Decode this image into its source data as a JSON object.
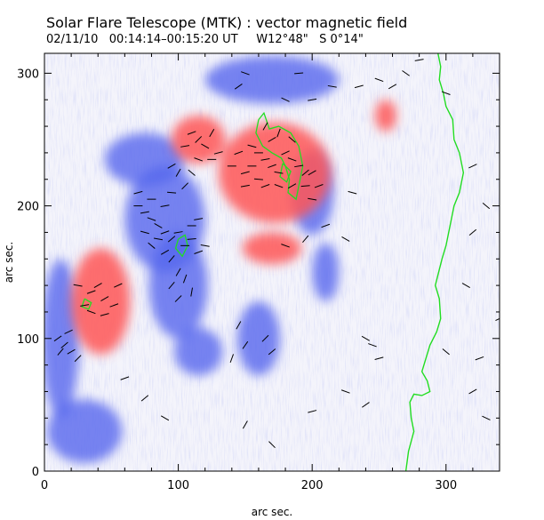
{
  "header": {
    "title": "Solar Flare Telescope (MTK) : vector magnetic field",
    "subtitle": "02/11/10   00:14:14–00:15:20 UT     W12°48\"   S 0°14\""
  },
  "chart_data": {
    "type": "heatmap",
    "xlabel": "arc sec.",
    "ylabel": "arc sec.",
    "xlim": [
      0,
      340
    ],
    "ylim": [
      0,
      315
    ],
    "xticks": [
      0,
      100,
      200,
      300
    ],
    "yticks": [
      0,
      100,
      200,
      300
    ],
    "grid": false,
    "colors": {
      "positive": "#ff5555",
      "negative": "#5566ee",
      "neutral_line": "#22dd22",
      "vectors": "#000000"
    },
    "positive_regions": [
      {
        "cx": 42,
        "cy": 128,
        "rx": 22,
        "ry": 40
      },
      {
        "cx": 115,
        "cy": 250,
        "rx": 20,
        "ry": 18
      },
      {
        "cx": 172,
        "cy": 225,
        "rx": 42,
        "ry": 38
      },
      {
        "cx": 255,
        "cy": 268,
        "rx": 8,
        "ry": 12
      },
      {
        "cx": 170,
        "cy": 168,
        "rx": 22,
        "ry": 12
      }
    ],
    "negative_regions": [
      {
        "cx": 90,
        "cy": 190,
        "rx": 30,
        "ry": 40
      },
      {
        "cx": 75,
        "cy": 235,
        "rx": 30,
        "ry": 20
      },
      {
        "cx": 200,
        "cy": 210,
        "rx": 16,
        "ry": 32
      },
      {
        "cx": 170,
        "cy": 295,
        "rx": 50,
        "ry": 18
      },
      {
        "cx": 12,
        "cy": 100,
        "rx": 14,
        "ry": 60
      },
      {
        "cx": 100,
        "cy": 140,
        "rx": 22,
        "ry": 40
      },
      {
        "cx": 160,
        "cy": 100,
        "rx": 16,
        "ry": 28
      },
      {
        "cx": 115,
        "cy": 90,
        "rx": 18,
        "ry": 18
      },
      {
        "cx": 30,
        "cy": 30,
        "rx": 28,
        "ry": 24
      },
      {
        "cx": 210,
        "cy": 150,
        "rx": 10,
        "ry": 22
      }
    ],
    "neutral_line": [
      [
        294,
        315
      ],
      [
        296,
        305
      ],
      [
        295,
        295
      ],
      [
        298,
        285
      ],
      [
        300,
        275
      ],
      [
        305,
        265
      ],
      [
        306,
        250
      ],
      [
        310,
        240
      ],
      [
        313,
        225
      ],
      [
        310,
        210
      ],
      [
        306,
        200
      ],
      [
        303,
        185
      ],
      [
        300,
        170
      ],
      [
        297,
        160
      ],
      [
        292,
        140
      ],
      [
        295,
        130
      ],
      [
        296,
        115
      ],
      [
        293,
        105
      ],
      [
        288,
        95
      ],
      [
        285,
        85
      ],
      [
        282,
        75
      ],
      [
        286,
        68
      ],
      [
        288,
        60
      ],
      [
        282,
        57
      ],
      [
        276,
        58
      ],
      [
        273,
        52
      ],
      [
        274,
        40
      ],
      [
        276,
        30
      ],
      [
        272,
        15
      ],
      [
        270,
        0
      ]
    ],
    "neutral_contours": [
      [
        [
          160,
          265
        ],
        [
          158,
          255
        ],
        [
          163,
          245
        ],
        [
          170,
          240
        ],
        [
          177,
          236
        ],
        [
          180,
          230
        ],
        [
          183,
          220
        ],
        [
          182,
          210
        ],
        [
          188,
          205
        ],
        [
          190,
          215
        ],
        [
          193,
          230
        ],
        [
          190,
          245
        ],
        [
          184,
          255
        ],
        [
          175,
          260
        ],
        [
          168,
          258
        ],
        [
          164,
          270
        ],
        [
          160,
          265
        ]
      ],
      [
        [
          100,
          175
        ],
        [
          98,
          168
        ],
        [
          103,
          162
        ],
        [
          107,
          170
        ],
        [
          105,
          178
        ],
        [
          100,
          175
        ]
      ],
      [
        [
          178,
          232
        ],
        [
          176,
          222
        ],
        [
          181,
          218
        ],
        [
          184,
          226
        ],
        [
          178,
          232
        ]
      ],
      [
        [
          30,
          130
        ],
        [
          28,
          124
        ],
        [
          33,
          122
        ],
        [
          35,
          127
        ],
        [
          30,
          130
        ]
      ]
    ],
    "vectors": [
      [
        10,
        100,
        35
      ],
      [
        15,
        95,
        40
      ],
      [
        20,
        90,
        30
      ],
      [
        25,
        85,
        45
      ],
      [
        18,
        105,
        25
      ],
      [
        12,
        90,
        50
      ],
      [
        25,
        140,
        -10
      ],
      [
        35,
        135,
        20
      ],
      [
        45,
        130,
        30
      ],
      [
        35,
        120,
        -20
      ],
      [
        45,
        118,
        15
      ],
      [
        30,
        125,
        10
      ],
      [
        40,
        140,
        30
      ],
      [
        52,
        125,
        20
      ],
      [
        55,
        140,
        25
      ],
      [
        70,
        200,
        0
      ],
      [
        75,
        195,
        10
      ],
      [
        80,
        190,
        -20
      ],
      [
        85,
        185,
        -30
      ],
      [
        90,
        180,
        20
      ],
      [
        95,
        175,
        40
      ],
      [
        85,
        175,
        -10
      ],
      [
        90,
        165,
        30
      ],
      [
        95,
        160,
        50
      ],
      [
        80,
        170,
        -40
      ],
      [
        75,
        180,
        -15
      ],
      [
        100,
        180,
        10
      ],
      [
        105,
        170,
        0
      ],
      [
        110,
        175,
        5
      ],
      [
        115,
        165,
        20
      ],
      [
        120,
        170,
        -10
      ],
      [
        110,
        185,
        0
      ],
      [
        115,
        190,
        10
      ],
      [
        80,
        205,
        0
      ],
      [
        90,
        200,
        10
      ],
      [
        95,
        210,
        -5
      ],
      [
        70,
        210,
        15
      ],
      [
        100,
        150,
        60
      ],
      [
        105,
        145,
        70
      ],
      [
        95,
        140,
        50
      ],
      [
        110,
        135,
        80
      ],
      [
        100,
        130,
        45
      ],
      [
        160,
        240,
        0
      ],
      [
        165,
        235,
        10
      ],
      [
        170,
        230,
        20
      ],
      [
        175,
        225,
        -10
      ],
      [
        155,
        230,
        0
      ],
      [
        150,
        225,
        15
      ],
      [
        160,
        220,
        -5
      ],
      [
        165,
        215,
        20
      ],
      [
        180,
        240,
        25
      ],
      [
        185,
        235,
        -20
      ],
      [
        190,
        230,
        10
      ],
      [
        195,
        225,
        40
      ],
      [
        155,
        245,
        -15
      ],
      [
        170,
        250,
        30
      ],
      [
        165,
        260,
        60
      ],
      [
        175,
        255,
        70
      ],
      [
        185,
        250,
        -40
      ],
      [
        145,
        240,
        20
      ],
      [
        140,
        230,
        0
      ],
      [
        150,
        215,
        10
      ],
      [
        175,
        215,
        -20
      ],
      [
        185,
        215,
        30
      ],
      [
        195,
        215,
        5
      ],
      [
        200,
        205,
        -10
      ],
      [
        205,
        215,
        20
      ],
      [
        200,
        225,
        30
      ],
      [
        115,
        250,
        45
      ],
      [
        120,
        245,
        -30
      ],
      [
        110,
        255,
        20
      ],
      [
        125,
        255,
        60
      ],
      [
        105,
        245,
        10
      ],
      [
        115,
        235,
        -20
      ],
      [
        125,
        235,
        0
      ],
      [
        130,
        240,
        15
      ],
      [
        95,
        230,
        30
      ],
      [
        100,
        225,
        60
      ],
      [
        110,
        225,
        -40
      ],
      [
        105,
        215,
        45
      ],
      [
        230,
        210,
        -15
      ],
      [
        210,
        185,
        20
      ],
      [
        225,
        175,
        -30
      ],
      [
        195,
        175,
        50
      ],
      [
        180,
        170,
        -20
      ],
      [
        240,
        100,
        -30
      ],
      [
        245,
        95,
        -20
      ],
      [
        250,
        85,
        15
      ],
      [
        170,
        90,
        40
      ],
      [
        165,
        100,
        45
      ],
      [
        145,
        110,
        60
      ],
      [
        150,
        95,
        55
      ],
      [
        140,
        85,
        70
      ],
      [
        250,
        295,
        -20
      ],
      [
        260,
        290,
        30
      ],
      [
        270,
        300,
        -35
      ],
      [
        280,
        310,
        10
      ],
      [
        300,
        285,
        -20
      ],
      [
        320,
        230,
        25
      ],
      [
        330,
        200,
        -40
      ],
      [
        235,
        290,
        15
      ],
      [
        180,
        280,
        -25
      ],
      [
        200,
        280,
        10
      ],
      [
        215,
        290,
        -10
      ],
      [
        145,
        290,
        35
      ],
      [
        150,
        300,
        -20
      ],
      [
        190,
        300,
        5
      ],
      [
        60,
        70,
        20
      ],
      [
        75,
        55,
        40
      ],
      [
        90,
        40,
        -30
      ],
      [
        200,
        45,
        15
      ],
      [
        225,
        60,
        -20
      ],
      [
        240,
        50,
        35
      ],
      [
        150,
        35,
        60
      ],
      [
        170,
        20,
        -45
      ],
      [
        320,
        60,
        30
      ],
      [
        330,
        40,
        -25
      ],
      [
        320,
        180,
        40
      ],
      [
        315,
        140,
        -30
      ],
      [
        340,
        115,
        25
      ],
      [
        300,
        90,
        -40
      ],
      [
        325,
        85,
        20
      ]
    ]
  }
}
